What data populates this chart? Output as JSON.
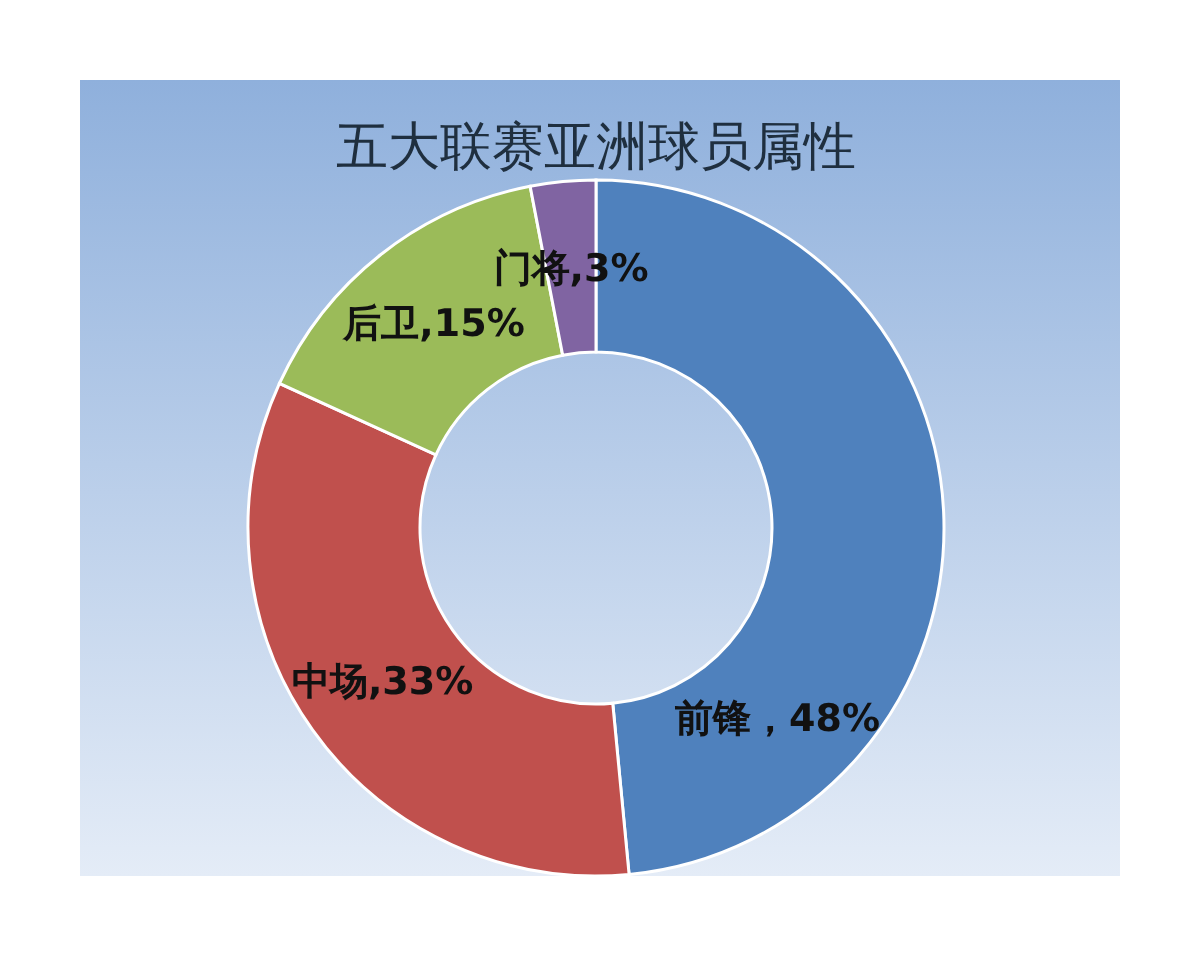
{
  "chart_data": {
    "type": "donut",
    "title": "五大联赛亚洲球员属性",
    "categories": [
      "前锋",
      "中场",
      "后卫",
      "门将"
    ],
    "values": [
      48,
      33,
      15,
      3
    ],
    "value_labels": [
      "，48%",
      ",33%",
      ",15%",
      ",3%"
    ],
    "colors": [
      "#4f81bd",
      "#c0504d",
      "#9bbb59",
      "#8064a2"
    ]
  }
}
